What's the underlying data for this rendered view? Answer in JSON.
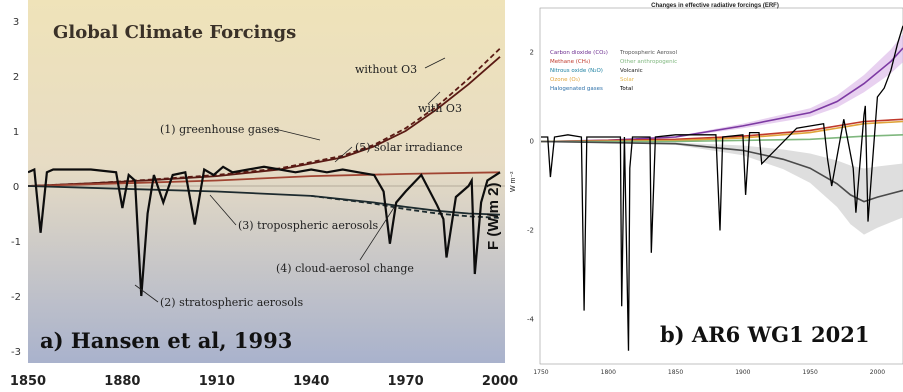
{
  "panels": {
    "a": {
      "caption": "a) Hansen et al, 1993"
    },
    "b": {
      "caption": "b) AR6 WG1 2021"
    }
  },
  "chart_data": [
    {
      "type": "line",
      "title": "Global Climate Forcings",
      "ylabel": "F (W/m 2)",
      "xlim": [
        1850,
        2000
      ],
      "ylim": [
        -3,
        3
      ],
      "x_ticks": [
        "1850",
        "1880",
        "1910",
        "1940",
        "1970",
        "2000"
      ],
      "y_ticks": [
        "3",
        "2",
        "1",
        "0",
        "-1",
        "-2",
        "-3"
      ],
      "annotations": {
        "greenhouse": "(1) greenhouse gases",
        "solar": "(5) solar irradiance",
        "trop_aerosol": "(3) tropospheric aerosols",
        "cloud_aerosol": "(4) cloud-aerosol change",
        "strat_aerosol": "(2) stratospheric aerosols",
        "without_o3": "without O3",
        "with_o3": "with O3"
      },
      "series": [
        {
          "key": "ghg_without_o3",
          "color": "#5a1a14",
          "dashed": true,
          "x": [
            1850,
            1870,
            1890,
            1910,
            1930,
            1950,
            1960,
            1970,
            1980,
            1990,
            2000
          ],
          "y": [
            0.0,
            0.05,
            0.12,
            0.2,
            0.32,
            0.55,
            0.75,
            1.05,
            1.45,
            1.95,
            2.5
          ]
        },
        {
          "key": "ghg_with_o3",
          "color": "#5a1a14",
          "x": [
            1850,
            1870,
            1890,
            1910,
            1930,
            1950,
            1960,
            1970,
            1980,
            1990,
            2000
          ],
          "y": [
            0.0,
            0.05,
            0.11,
            0.18,
            0.3,
            0.52,
            0.72,
            1.0,
            1.4,
            1.85,
            2.35
          ]
        },
        {
          "key": "solar",
          "color": "#a04432",
          "x": [
            1850,
            1880,
            1910,
            1940,
            1970,
            2000
          ],
          "y": [
            0.0,
            0.05,
            0.1,
            0.18,
            0.22,
            0.25
          ]
        },
        {
          "key": "trop_aerosols",
          "color": "#1c2a2e",
          "x": [
            1850,
            1880,
            1910,
            1940,
            1960,
            1970,
            1980,
            1990,
            2000
          ],
          "y": [
            0.0,
            -0.05,
            -0.1,
            -0.18,
            -0.3,
            -0.38,
            -0.45,
            -0.5,
            -0.52
          ]
        },
        {
          "key": "cloud_aerosol",
          "color": "#1c2a2e",
          "dashed": true,
          "x": [
            1940,
            1960,
            1970,
            1980,
            1990,
            2000
          ],
          "y": [
            -0.18,
            -0.32,
            -0.42,
            -0.5,
            -0.55,
            -0.58
          ]
        },
        {
          "key": "stratospheric_aerosols",
          "color": "#0d0d0d",
          "x": [
            1850,
            1852,
            1854,
            1856,
            1858,
            1860,
            1870,
            1878,
            1880,
            1882,
            1884,
            1886,
            1888,
            1890,
            1893,
            1896,
            1900,
            1903,
            1906,
            1909,
            1912,
            1915,
            1920,
            1925,
            1930,
            1935,
            1940,
            1945,
            1950,
            1955,
            1960,
            1963,
            1965,
            1967,
            1970,
            1975,
            1980,
            1982,
            1983,
            1986,
            1990,
            1991,
            1992,
            1994,
            1996,
            2000
          ],
          "y": [
            0.25,
            0.3,
            -0.85,
            0.25,
            0.3,
            0.3,
            0.3,
            0.25,
            -0.4,
            0.2,
            0.1,
            -2.0,
            -0.5,
            0.2,
            -0.3,
            0.2,
            0.25,
            -0.7,
            0.3,
            0.2,
            0.35,
            0.25,
            0.3,
            0.35,
            0.3,
            0.25,
            0.3,
            0.25,
            0.3,
            0.25,
            0.2,
            -0.1,
            -1.05,
            -0.3,
            -0.1,
            0.2,
            -0.35,
            -0.6,
            -1.3,
            -0.2,
            0.0,
            0.1,
            -1.6,
            -0.3,
            0.1,
            0.25
          ]
        }
      ]
    },
    {
      "type": "line",
      "title": "Changes in effective radiative forcings (ERF)",
      "ylabel": "W m⁻²",
      "xlim": [
        1750,
        2019
      ],
      "ylim": [
        -5,
        3
      ],
      "x_ticks": [
        "1750",
        "1800",
        "1850",
        "1900",
        "1950",
        "2000"
      ],
      "y_ticks": [
        "2",
        "0",
        "-2",
        "-4"
      ],
      "legend": [
        {
          "label": "Carbon dioxide (CO₂)",
          "color": "#6b2c8f"
        },
        {
          "label": "Methane (CH₄)",
          "color": "#c0392b"
        },
        {
          "label": "Nitrous oxide (N₂O)",
          "color": "#1a7fa0"
        },
        {
          "label": "Ozone (O₃)",
          "color": "#e0a43a"
        },
        {
          "label": "Halogenated gases",
          "color": "#2b6fa8"
        },
        {
          "label": "Tropospheric Aerosol",
          "color": "#555555"
        },
        {
          "label": "Other anthropogenic",
          "color": "#7fb77e"
        },
        {
          "label": "Volcanic",
          "color": "#222222"
        },
        {
          "label": "Solar",
          "color": "#e6b84d"
        },
        {
          "label": "Total",
          "color": "#000000"
        }
      ],
      "series": [
        {
          "key": "co2",
          "color": "#7d3aa3",
          "x": [
            1750,
            1800,
            1850,
            1900,
            1950,
            1970,
            1990,
            2010,
            2019
          ],
          "y": [
            0,
            0.03,
            0.1,
            0.35,
            0.65,
            0.9,
            1.3,
            1.8,
            2.1
          ]
        },
        {
          "key": "methane",
          "color": "#c0392b",
          "x": [
            1750,
            1850,
            1900,
            1950,
            1990,
            2019
          ],
          "y": [
            0,
            0.05,
            0.12,
            0.25,
            0.45,
            0.5
          ]
        },
        {
          "key": "ozone",
          "color": "#e0a43a",
          "x": [
            1750,
            1850,
            1900,
            1950,
            1990,
            2019
          ],
          "y": [
            0,
            0.02,
            0.08,
            0.2,
            0.4,
            0.45
          ]
        },
        {
          "key": "other",
          "color": "#7fb77e",
          "x": [
            1750,
            1850,
            1950,
            1990,
            2019
          ],
          "y": [
            0,
            0.0,
            0.05,
            0.12,
            0.15
          ]
        },
        {
          "key": "aerosol",
          "color": "#4a4a4a",
          "x": [
            1750,
            1850,
            1900,
            1930,
            1950,
            1970,
            1980,
            1990,
            2000,
            2019
          ],
          "y": [
            0,
            -0.05,
            -0.2,
            -0.4,
            -0.6,
            -0.95,
            -1.2,
            -1.35,
            -1.25,
            -1.1
          ]
        },
        {
          "key": "volcanic_total",
          "color": "#000000",
          "x": [
            1750,
            1755,
            1757,
            1760,
            1770,
            1780,
            1782,
            1784,
            1790,
            1800,
            1809,
            1810,
            1812,
            1815,
            1816,
            1818,
            1822,
            1831,
            1832,
            1835,
            1850,
            1880,
            1883,
            1885,
            1900,
            1902,
            1905,
            1912,
            1914,
            1940,
            1960,
            1963,
            1966,
            1975,
            1982,
            1984,
            1990,
            1991,
            1993,
            2000,
            2005,
            2010,
            2015,
            2019
          ],
          "y": [
            0.1,
            0.1,
            -0.8,
            0.1,
            0.15,
            0.1,
            -3.8,
            0.1,
            0.1,
            0.1,
            0.1,
            -3.7,
            0.1,
            -4.7,
            -0.6,
            0.1,
            0.1,
            0.1,
            -2.5,
            0.1,
            0.15,
            0.15,
            -2.0,
            0.1,
            0.15,
            -1.2,
            0.2,
            0.2,
            -0.5,
            0.3,
            0.4,
            -0.4,
            -1.0,
            0.5,
            -0.6,
            -1.6,
            0.6,
            0.8,
            -1.8,
            1.0,
            1.2,
            1.6,
            2.2,
            2.6
          ]
        }
      ]
    }
  ]
}
